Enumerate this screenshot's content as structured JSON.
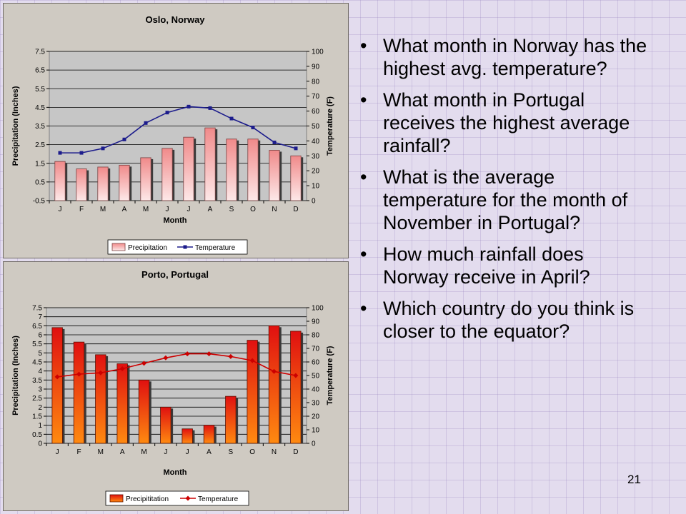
{
  "questions": [
    "What month in Norway has the highest avg. temperature?",
    "What month in Portugal receives the highest average rainfall?",
    "What is the average temperature for the month of November in Portugal?",
    "How much rainfall does Norway receive in April?",
    "Which country do you think is closer to the equator?"
  ],
  "page_number": "21",
  "chart_data": [
    {
      "type": "bar",
      "title": "Oslo, Norway",
      "xlabel": "Month",
      "ylabel": "Precipitation (Inches)",
      "y2label": "Temperature (F)",
      "categories": [
        "J",
        "F",
        "M",
        "A",
        "M",
        "J",
        "J",
        "A",
        "S",
        "O",
        "N",
        "D"
      ],
      "ylim": [
        -0.5,
        7.5
      ],
      "yticks": [
        -0.5,
        0.5,
        1.5,
        2.5,
        3.5,
        4.5,
        5.5,
        6.5,
        7.5
      ],
      "y2lim": [
        0,
        100
      ],
      "y2ticks": [
        0,
        10,
        20,
        30,
        40,
        50,
        60,
        70,
        80,
        90,
        100
      ],
      "grid": true,
      "legend": "bottom",
      "bar_style": "pink",
      "line_style": "blue-square",
      "series": [
        {
          "name": "Precipitation",
          "type": "bar",
          "axis": "left",
          "values": [
            1.6,
            1.2,
            1.3,
            1.4,
            1.8,
            2.3,
            2.9,
            3.4,
            2.8,
            2.8,
            2.2,
            1.9
          ]
        },
        {
          "name": "Temperature",
          "type": "line",
          "axis": "right",
          "values": [
            32,
            32,
            35,
            41,
            52,
            59,
            63,
            62,
            55,
            49,
            39,
            35
          ]
        }
      ]
    },
    {
      "type": "bar",
      "title": "Porto, Portugal",
      "xlabel": "Month",
      "ylabel": "Precipitation (Inches)",
      "y2label": "Temperature (F)",
      "categories": [
        "J",
        "F",
        "M",
        "A",
        "M",
        "J",
        "J",
        "A",
        "S",
        "O",
        "N",
        "D"
      ],
      "ylim": [
        0,
        7.5
      ],
      "yticks": [
        0,
        0.5,
        1,
        1.5,
        2,
        2.5,
        3,
        3.5,
        4,
        4.5,
        5,
        5.5,
        6,
        6.5,
        7,
        7.5
      ],
      "y2lim": [
        0,
        100
      ],
      "y2ticks": [
        0,
        10,
        20,
        30,
        40,
        50,
        60,
        70,
        80,
        90,
        100
      ],
      "grid": true,
      "legend": "bottom",
      "bar_style": "orange-red",
      "line_style": "red-diamond",
      "series": [
        {
          "name": "Precipititation",
          "type": "bar",
          "axis": "left",
          "values": [
            6.4,
            5.6,
            4.9,
            4.4,
            3.5,
            2.0,
            0.8,
            1.0,
            2.6,
            5.7,
            6.5,
            6.2
          ]
        },
        {
          "name": "Temperature",
          "type": "line",
          "axis": "right",
          "values": [
            49,
            51,
            52,
            55,
            59,
            63,
            66,
            66,
            64,
            61,
            53,
            50
          ]
        }
      ]
    }
  ]
}
